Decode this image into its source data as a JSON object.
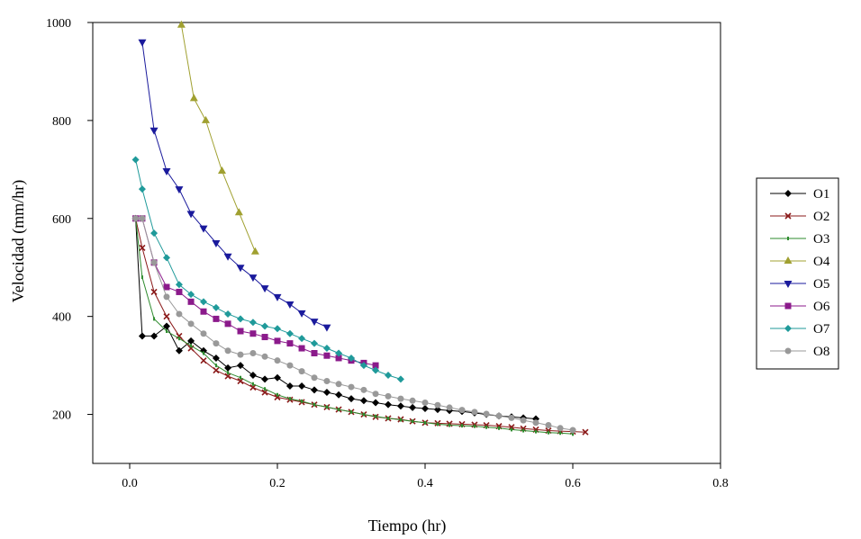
{
  "chart_data": {
    "type": "line",
    "title": "",
    "xlabel": "Tiempo (hr)",
    "ylabel": "Velocidad (mm/hr)",
    "xlim": [
      -0.05,
      0.8
    ],
    "ylim": [
      100,
      1000
    ],
    "xticks": [
      0.0,
      0.2,
      0.4,
      0.6,
      0.8
    ],
    "xtick_labels": [
      "0.0",
      "0.2",
      "0.4",
      "0.6",
      "0.8"
    ],
    "yticks": [
      200,
      400,
      600,
      800,
      1000
    ],
    "ytick_labels": [
      "200",
      "400",
      "600",
      "800",
      "1000"
    ],
    "grid": false,
    "legend_position": "right",
    "series": [
      {
        "name": "O1",
        "color": "#000000",
        "marker": "diamond",
        "x": [
          0.008,
          0.017,
          0.033,
          0.05,
          0.067,
          0.083,
          0.1,
          0.117,
          0.133,
          0.15,
          0.167,
          0.183,
          0.2,
          0.217,
          0.233,
          0.25,
          0.267,
          0.283,
          0.3,
          0.317,
          0.333,
          0.35,
          0.367,
          0.383,
          0.4,
          0.417,
          0.433,
          0.45,
          0.467,
          0.483,
          0.5,
          0.517,
          0.533,
          0.55
        ],
        "y": [
          600,
          360,
          360,
          380,
          330,
          350,
          330,
          315,
          295,
          300,
          280,
          272,
          275,
          258,
          258,
          250,
          245,
          240,
          232,
          228,
          224,
          220,
          217,
          214,
          212,
          210,
          208,
          206,
          203,
          200,
          197,
          195,
          193,
          191
        ]
      },
      {
        "name": "O2",
        "color": "#8b1a1a",
        "marker": "x",
        "x": [
          0.008,
          0.017,
          0.033,
          0.05,
          0.067,
          0.083,
          0.1,
          0.117,
          0.133,
          0.15,
          0.167,
          0.183,
          0.2,
          0.217,
          0.233,
          0.25,
          0.267,
          0.283,
          0.3,
          0.317,
          0.333,
          0.35,
          0.367,
          0.383,
          0.4,
          0.417,
          0.433,
          0.45,
          0.467,
          0.483,
          0.5,
          0.517,
          0.533,
          0.55,
          0.567,
          0.583,
          0.6,
          0.617
        ],
        "y": [
          600,
          540,
          450,
          400,
          360,
          335,
          310,
          290,
          278,
          268,
          255,
          245,
          235,
          230,
          225,
          220,
          215,
          210,
          205,
          200,
          195,
          192,
          190,
          186,
          183,
          182,
          181,
          180,
          179,
          178,
          176,
          174,
          171,
          169,
          167,
          166,
          165,
          164
        ]
      },
      {
        "name": "O3",
        "color": "#2e8b2e",
        "marker": "dash",
        "x": [
          0.008,
          0.017,
          0.033,
          0.05,
          0.067,
          0.083,
          0.1,
          0.117,
          0.133,
          0.15,
          0.167,
          0.183,
          0.2,
          0.217,
          0.233,
          0.25,
          0.267,
          0.283,
          0.3,
          0.317,
          0.333,
          0.35,
          0.367,
          0.383,
          0.4,
          0.417,
          0.433,
          0.45,
          0.467,
          0.483,
          0.5,
          0.517,
          0.533,
          0.55,
          0.567,
          0.583,
          0.6
        ],
        "y": [
          600,
          480,
          395,
          370,
          355,
          340,
          325,
          300,
          285,
          275,
          262,
          252,
          240,
          232,
          227,
          220,
          215,
          210,
          205,
          200,
          196,
          192,
          189,
          186,
          183,
          180,
          178,
          177,
          176,
          174,
          172,
          169,
          167,
          165,
          163,
          162,
          160
        ]
      },
      {
        "name": "O4",
        "color": "#a0a030",
        "marker": "triangle-up",
        "x": [
          0.07,
          0.087,
          0.103,
          0.125,
          0.148,
          0.17
        ],
        "y": [
          995,
          845,
          800,
          697,
          612,
          532
        ]
      },
      {
        "name": "O5",
        "color": "#1a1a9c",
        "marker": "triangle-down",
        "x": [
          0.017,
          0.033,
          0.05,
          0.067,
          0.083,
          0.1,
          0.117,
          0.133,
          0.15,
          0.167,
          0.183,
          0.2,
          0.217,
          0.233,
          0.25,
          0.267
        ],
        "y": [
          960,
          780,
          697,
          660,
          610,
          580,
          550,
          523,
          500,
          480,
          458,
          440,
          425,
          407,
          390,
          378
        ]
      },
      {
        "name": "O6",
        "color": "#8b1a8b",
        "marker": "square",
        "x": [
          0.008,
          0.017,
          0.033,
          0.05,
          0.067,
          0.083,
          0.1,
          0.117,
          0.133,
          0.15,
          0.167,
          0.183,
          0.2,
          0.217,
          0.233,
          0.25,
          0.267,
          0.283,
          0.3,
          0.317,
          0.333
        ],
        "y": [
          600,
          600,
          510,
          460,
          450,
          430,
          410,
          395,
          385,
          370,
          365,
          358,
          350,
          345,
          335,
          325,
          320,
          315,
          310,
          305,
          300
        ]
      },
      {
        "name": "O7",
        "color": "#1f9a9a",
        "marker": "diamond",
        "x": [
          0.008,
          0.017,
          0.033,
          0.05,
          0.067,
          0.083,
          0.1,
          0.117,
          0.133,
          0.15,
          0.167,
          0.183,
          0.2,
          0.217,
          0.233,
          0.25,
          0.267,
          0.283,
          0.3,
          0.317,
          0.333,
          0.35,
          0.367
        ],
        "y": [
          720,
          660,
          570,
          520,
          465,
          445,
          430,
          418,
          405,
          395,
          388,
          380,
          375,
          365,
          355,
          345,
          335,
          325,
          315,
          300,
          290,
          280,
          272
        ]
      },
      {
        "name": "O8",
        "color": "#999999",
        "marker": "circle",
        "x": [
          0.008,
          0.017,
          0.033,
          0.05,
          0.067,
          0.083,
          0.1,
          0.117,
          0.133,
          0.15,
          0.167,
          0.183,
          0.2,
          0.217,
          0.233,
          0.25,
          0.267,
          0.283,
          0.3,
          0.317,
          0.333,
          0.35,
          0.367,
          0.383,
          0.4,
          0.417,
          0.433,
          0.45,
          0.467,
          0.483,
          0.5,
          0.517,
          0.533,
          0.55,
          0.567,
          0.583,
          0.6
        ],
        "y": [
          600,
          600,
          510,
          440,
          405,
          385,
          365,
          345,
          330,
          322,
          325,
          318,
          310,
          300,
          288,
          275,
          268,
          262,
          256,
          250,
          242,
          237,
          232,
          228,
          224,
          219,
          214,
          209,
          205,
          201,
          197,
          193,
          188,
          183,
          178,
          172,
          168
        ]
      }
    ]
  }
}
